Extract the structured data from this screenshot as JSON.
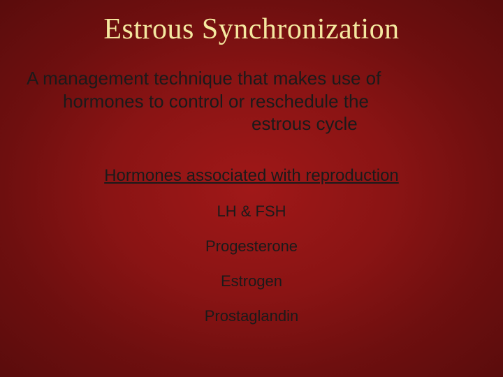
{
  "colors": {
    "background_center": "#a01818",
    "background_mid": "#8a1414",
    "background_outer": "#6e0f0f",
    "background_edge": "#5a0c0c",
    "title_color": "#f5e8a0",
    "body_color": "#1a1a1a"
  },
  "typography": {
    "title_font": "Comic Sans MS",
    "title_fontsize_pt": 32,
    "body_font": "Verdana",
    "body_fontsize_pt": 20,
    "subhead_fontsize_pt": 18,
    "hormone_fontsize_pt": 17
  },
  "title": "Estrous Synchronization",
  "definition": {
    "line1": "A management technique that makes use of",
    "line2": "hormones to control or reschedule the",
    "line3": "estrous cycle"
  },
  "subhead": "Hormones associated with reproduction",
  "hormones": {
    "item1": "LH & FSH",
    "item2": "Progesterone",
    "item3": "Estrogen",
    "item4": "Prostaglandin"
  }
}
